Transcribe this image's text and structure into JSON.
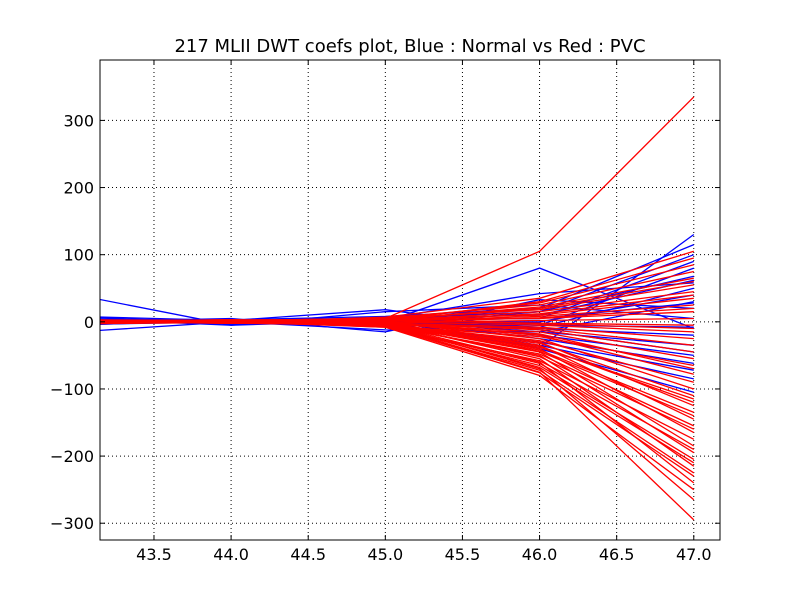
{
  "chart_data": {
    "type": "line",
    "title": "217 MLII DWT coefs plot, Blue : Normal vs Red : PVC",
    "xlabel": "",
    "ylabel": "",
    "xlim": [
      43.15,
      47.17
    ],
    "ylim": [
      -325,
      390
    ],
    "x": [
      43,
      44,
      45,
      46,
      47
    ],
    "grid": true,
    "xticks": [
      43.5,
      44.0,
      44.5,
      45.0,
      45.5,
      46.0,
      46.5,
      47.0
    ],
    "xtick_labels": [
      "43.5",
      "44.0",
      "44.5",
      "45.0",
      "45.5",
      "46.0",
      "46.5",
      "47.0"
    ],
    "yticks": [
      -300,
      -200,
      -100,
      0,
      100,
      200,
      300
    ],
    "ytick_labels": [
      "−300",
      "−200",
      "−100",
      "0",
      "100",
      "200",
      "300"
    ],
    "series": [
      {
        "color": "#0000ff",
        "values": [
          40,
          -5,
          15,
          25,
          5
        ]
      },
      {
        "color": "#0000ff",
        "values": [
          -15,
          0,
          -12,
          -15,
          30
        ]
      },
      {
        "color": "#0000ff",
        "values": [
          8,
          2,
          18,
          -12,
          -45
        ]
      },
      {
        "color": "#0000ff",
        "values": [
          5,
          2,
          -3,
          -38,
          130
        ]
      },
      {
        "color": "#0000ff",
        "values": [
          5,
          0,
          0,
          80,
          -10
        ]
      },
      {
        "color": "#0000ff",
        "values": [
          3,
          -2,
          5,
          42,
          58
        ]
      },
      {
        "color": "#0000ff",
        "values": [
          0,
          5,
          -15,
          33,
          20
        ]
      },
      {
        "color": "#0000ff",
        "values": [
          -5,
          3,
          8,
          20,
          115
        ]
      },
      {
        "color": "#0000ff",
        "values": [
          8,
          -3,
          5,
          15,
          100
        ]
      },
      {
        "color": "#0000ff",
        "values": [
          2,
          0,
          2,
          5,
          90
        ]
      },
      {
        "color": "#0000ff",
        "values": [
          0,
          2,
          -3,
          -5,
          80
        ]
      },
      {
        "color": "#0000ff",
        "values": [
          -3,
          3,
          5,
          10,
          62
        ]
      },
      {
        "color": "#0000ff",
        "values": [
          5,
          -5,
          2,
          -8,
          50
        ]
      },
      {
        "color": "#0000ff",
        "values": [
          2,
          0,
          -2,
          0,
          40
        ]
      },
      {
        "color": "#0000ff",
        "values": [
          -2,
          2,
          3,
          5,
          28
        ]
      },
      {
        "color": "#0000ff",
        "values": [
          0,
          -2,
          0,
          -10,
          -20
        ]
      },
      {
        "color": "#0000ff",
        "values": [
          3,
          0,
          2,
          -15,
          -35
        ]
      },
      {
        "color": "#0000ff",
        "values": [
          -3,
          3,
          -2,
          -20,
          -50
        ]
      },
      {
        "color": "#0000ff",
        "values": [
          2,
          -2,
          3,
          -25,
          -62
        ]
      },
      {
        "color": "#0000ff",
        "values": [
          0,
          2,
          -4,
          -30,
          -72
        ]
      },
      {
        "color": "#0000ff",
        "values": [
          4,
          -3,
          2,
          -35,
          -85
        ]
      },
      {
        "color": "#0000ff",
        "values": [
          -4,
          0,
          3,
          -40,
          -105
        ]
      },
      {
        "color": "#0000ff",
        "values": [
          2,
          3,
          -5,
          15,
          68
        ]
      },
      {
        "color": "#0000ff",
        "values": [
          0,
          0,
          4,
          -5,
          -8
        ]
      },
      {
        "color": "#ff0000",
        "values": [
          0,
          2,
          5,
          105,
          335
        ]
      },
      {
        "color": "#ff0000",
        "values": [
          2,
          0,
          -5,
          -75,
          -295
        ]
      },
      {
        "color": "#ff0000",
        "values": [
          0,
          3,
          -3,
          -70,
          -265
        ]
      },
      {
        "color": "#ff0000",
        "values": [
          -2,
          1,
          -8,
          -80,
          -250
        ]
      },
      {
        "color": "#ff0000",
        "values": [
          3,
          -2,
          -4,
          -60,
          -240
        ]
      },
      {
        "color": "#ff0000",
        "values": [
          1,
          2,
          -6,
          -72,
          -225
        ]
      },
      {
        "color": "#ff0000",
        "values": [
          -3,
          0,
          -2,
          -55,
          -215
        ]
      },
      {
        "color": "#ff0000",
        "values": [
          2,
          1,
          -7,
          -65,
          -205
        ]
      },
      {
        "color": "#ff0000",
        "values": [
          0,
          -2,
          -5,
          -50,
          -195
        ]
      },
      {
        "color": "#ff0000",
        "values": [
          -1,
          3,
          -3,
          -45,
          -185
        ]
      },
      {
        "color": "#ff0000",
        "values": [
          3,
          0,
          -8,
          -58,
          -175
        ]
      },
      {
        "color": "#ff0000",
        "values": [
          1,
          -1,
          -4,
          -40,
          -165
        ]
      },
      {
        "color": "#ff0000",
        "values": [
          -2,
          2,
          -6,
          -48,
          -155
        ]
      },
      {
        "color": "#ff0000",
        "values": [
          2,
          0,
          -2,
          -35,
          -145
        ]
      },
      {
        "color": "#ff0000",
        "values": [
          0,
          1,
          -5,
          -42,
          -135
        ]
      },
      {
        "color": "#ff0000",
        "values": [
          -3,
          -1,
          -3,
          -30,
          -125
        ]
      },
      {
        "color": "#ff0000",
        "values": [
          1,
          2,
          -7,
          -38,
          -115
        ]
      },
      {
        "color": "#ff0000",
        "values": [
          2,
          -2,
          -1,
          -25,
          -100
        ]
      },
      {
        "color": "#ff0000",
        "values": [
          0,
          0,
          -4,
          -28,
          -90
        ]
      },
      {
        "color": "#ff0000",
        "values": [
          -1,
          2,
          -2,
          -20,
          -78
        ]
      },
      {
        "color": "#ff0000",
        "values": [
          3,
          1,
          -6,
          -22,
          -65
        ]
      },
      {
        "color": "#ff0000",
        "values": [
          0,
          -1,
          -3,
          -15,
          -55
        ]
      },
      {
        "color": "#ff0000",
        "values": [
          -2,
          1,
          -1,
          -12,
          -45
        ]
      },
      {
        "color": "#ff0000",
        "values": [
          1,
          0,
          -4,
          -10,
          -35
        ]
      },
      {
        "color": "#ff0000",
        "values": [
          2,
          2,
          -2,
          -8,
          -25
        ]
      },
      {
        "color": "#ff0000",
        "values": [
          0,
          -2,
          0,
          -5,
          -15
        ]
      },
      {
        "color": "#ff0000",
        "values": [
          -1,
          1,
          2,
          -2,
          -5
        ]
      },
      {
        "color": "#ff0000",
        "values": [
          1,
          0,
          -1,
          2,
          5
        ]
      },
      {
        "color": "#ff0000",
        "values": [
          -2,
          2,
          3,
          5,
          15
        ]
      },
      {
        "color": "#ff0000",
        "values": [
          2,
          -1,
          1,
          8,
          25
        ]
      },
      {
        "color": "#ff0000",
        "values": [
          0,
          1,
          4,
          10,
          35
        ]
      },
      {
        "color": "#ff0000",
        "values": [
          -1,
          0,
          2,
          15,
          45
        ]
      },
      {
        "color": "#ff0000",
        "values": [
          3,
          2,
          5,
          18,
          55
        ]
      },
      {
        "color": "#ff0000",
        "values": [
          1,
          -2,
          3,
          22,
          65
        ]
      },
      {
        "color": "#ff0000",
        "values": [
          -2,
          1,
          6,
          25,
          75
        ]
      },
      {
        "color": "#ff0000",
        "values": [
          0,
          0,
          4,
          28,
          85
        ]
      },
      {
        "color": "#ff0000",
        "values": [
          2,
          2,
          2,
          30,
          95
        ]
      },
      {
        "color": "#ff0000",
        "values": [
          -1,
          -1,
          7,
          35,
          105
        ]
      },
      {
        "color": "#ff0000",
        "values": [
          1,
          3,
          3,
          20,
          60
        ]
      },
      {
        "color": "#ff0000",
        "values": [
          -3,
          0,
          -5,
          -32,
          -110
        ]
      },
      {
        "color": "#ff0000",
        "values": [
          2,
          1,
          -3,
          -52,
          -160
        ]
      },
      {
        "color": "#ff0000",
        "values": [
          0,
          -1,
          -6,
          -62,
          -190
        ]
      },
      {
        "color": "#ff0000",
        "values": [
          -2,
          2,
          -4,
          -68,
          -210
        ]
      },
      {
        "color": "#ff0000",
        "values": [
          1,
          0,
          -7,
          -76,
          -230
        ]
      },
      {
        "color": "#ff0000",
        "values": [
          3,
          -2,
          -2,
          -44,
          -140
        ]
      },
      {
        "color": "#ff0000",
        "values": [
          0,
          3,
          -5,
          -36,
          -120
        ]
      },
      {
        "color": "#ff0000",
        "values": [
          -1,
          1,
          -3,
          -18,
          -70
        ]
      },
      {
        "color": "#ff0000",
        "values": [
          2,
          0,
          1,
          12,
          40
        ]
      },
      {
        "color": "#ff0000",
        "values": [
          0,
          2,
          -1,
          6,
          20
        ]
      },
      {
        "color": "#ff0000",
        "values": [
          1,
          -2,
          3,
          -3,
          -10
        ]
      }
    ]
  }
}
